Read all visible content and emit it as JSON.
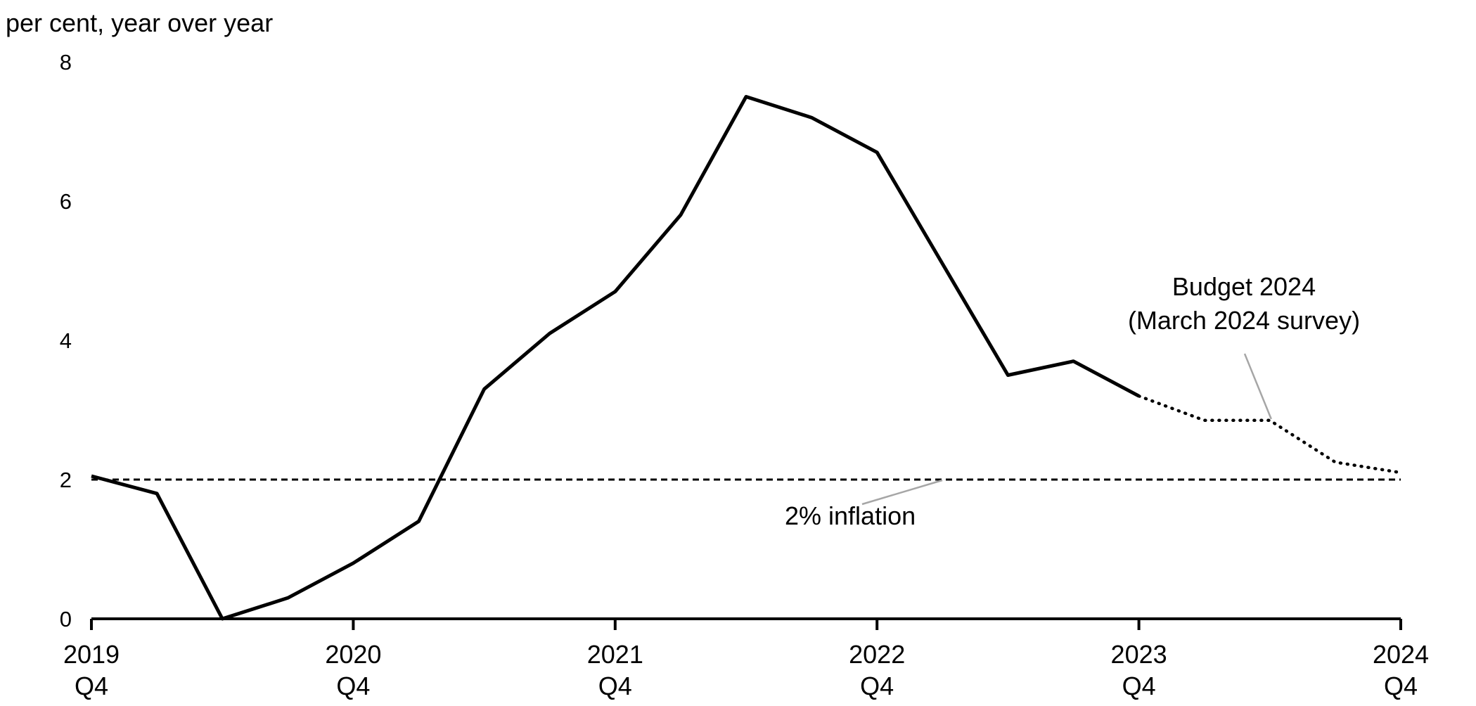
{
  "chart_data": {
    "type": "line",
    "ylabel": "per cent, year over year",
    "ylim": [
      0,
      8
    ],
    "yticks": [
      "0",
      "2",
      "4",
      "6",
      "8"
    ],
    "xticks": [
      {
        "year": "2019",
        "quarter": "Q4"
      },
      {
        "year": "2020",
        "quarter": "Q4"
      },
      {
        "year": "2021",
        "quarter": "Q4"
      },
      {
        "year": "2022",
        "quarter": "Q4"
      },
      {
        "year": "2023",
        "quarter": "Q4"
      },
      {
        "year": "2024",
        "quarter": "Q4"
      }
    ],
    "x": [
      "2019 Q4",
      "2020 Q1",
      "2020 Q2",
      "2020 Q3",
      "2020 Q4",
      "2021 Q1",
      "2021 Q2",
      "2021 Q3",
      "2021 Q4",
      "2022 Q1",
      "2022 Q2",
      "2022 Q3",
      "2022 Q4",
      "2023 Q1",
      "2023 Q2",
      "2023 Q3",
      "2023 Q4",
      "2024 Q1",
      "2024 Q2",
      "2024 Q3",
      "2024 Q4"
    ],
    "series": [
      {
        "style": "solid",
        "x": [
          "2019 Q4",
          "2020 Q1",
          "2020 Q2",
          "2020 Q3",
          "2020 Q4",
          "2021 Q1",
          "2021 Q2",
          "2021 Q3",
          "2021 Q4",
          "2022 Q1",
          "2022 Q2",
          "2022 Q3",
          "2022 Q4",
          "2023 Q1",
          "2023 Q2",
          "2023 Q3",
          "2023 Q4"
        ],
        "values": [
          2.05,
          1.8,
          0.0,
          0.3,
          0.8,
          1.4,
          3.3,
          4.1,
          4.7,
          5.8,
          7.5,
          7.2,
          6.7,
          5.1,
          3.5,
          3.7,
          3.2
        ]
      },
      {
        "style": "dotted",
        "name": "Budget 2024 (March 2024 survey)",
        "x": [
          "2023 Q4",
          "2024 Q1",
          "2024 Q2",
          "2024 Q3",
          "2024 Q4"
        ],
        "values": [
          3.2,
          2.85,
          2.85,
          2.25,
          2.1
        ]
      }
    ],
    "reference_line": {
      "value": 2,
      "style": "dashed",
      "label": "2% inflation"
    },
    "annotations": [
      {
        "lines": [
          "Budget 2024",
          "(March 2024 survey)"
        ],
        "points_to": "2024 Q2"
      },
      {
        "lines": [
          "2% inflation"
        ],
        "points_to": "reference_line"
      }
    ],
    "grid": false,
    "colors": {
      "line": "#000000",
      "leader": "#a6a6a6"
    }
  }
}
